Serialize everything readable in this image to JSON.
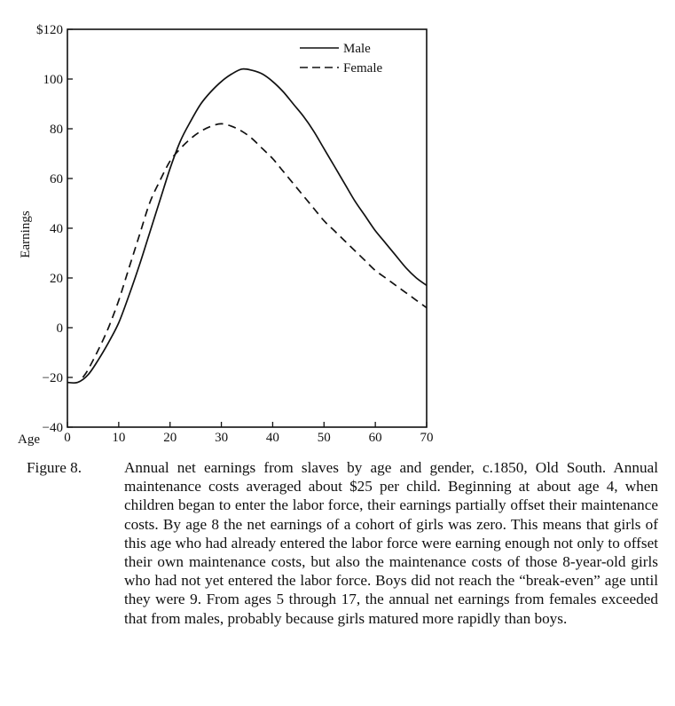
{
  "chart_data": {
    "type": "line",
    "title": "",
    "xlabel": "Age",
    "ylabel": "Earnings",
    "xlim": [
      0,
      70
    ],
    "ylim": [
      -40,
      120
    ],
    "x_ticks": [
      "0",
      "10",
      "20",
      "30",
      "40",
      "50",
      "60",
      "70"
    ],
    "x_tick_values": [
      0,
      10,
      20,
      30,
      40,
      50,
      60,
      70
    ],
    "y_ticks": [
      "$120",
      "100",
      "80",
      "60",
      "40",
      "20",
      "0",
      "−20",
      "−40"
    ],
    "y_tick_values": [
      120,
      100,
      80,
      60,
      40,
      20,
      0,
      -20,
      -40
    ],
    "grid": false,
    "legend_position": "top-right",
    "series": [
      {
        "name": "Male",
        "style": "solid",
        "color": "#111111",
        "x": [
          0,
          2,
          4,
          6,
          8,
          10,
          12,
          14,
          16,
          18,
          20,
          22,
          24,
          26,
          28,
          30,
          32,
          34,
          36,
          38,
          40,
          42,
          44,
          46,
          48,
          50,
          52,
          54,
          56,
          58,
          60,
          62,
          64,
          66,
          68,
          70
        ],
        "y": [
          -22,
          -22,
          -19,
          -13,
          -6,
          2,
          13,
          25,
          38,
          51,
          64,
          75,
          83,
          90,
          95,
          99,
          102,
          104,
          103.5,
          102,
          99,
          95,
          90,
          85,
          79,
          72,
          65,
          58,
          51,
          45,
          39,
          34,
          29,
          24,
          20,
          17
        ]
      },
      {
        "name": "Female",
        "style": "dashed",
        "color": "#111111",
        "x": [
          3,
          4,
          6,
          8,
          10,
          12,
          14,
          16,
          18,
          20,
          22,
          24,
          26,
          28,
          30,
          32,
          34,
          36,
          38,
          40,
          42,
          44,
          46,
          48,
          50,
          52,
          54,
          56,
          58,
          60,
          62,
          64,
          66,
          68,
          70
        ],
        "y": [
          -20,
          -17,
          -9,
          0,
          11,
          24,
          37,
          50,
          59,
          67,
          72,
          76,
          79,
          81,
          82,
          81,
          79,
          76,
          72,
          68,
          63,
          58,
          53,
          48,
          43,
          39,
          35,
          31,
          27,
          23,
          20,
          17,
          14,
          11,
          8
        ]
      }
    ]
  },
  "caption": {
    "label": "Figure 8.",
    "text": "Annual net earnings from slaves by age and gender, c.1850, Old South. Annual maintenance costs averaged about $25 per child. Beginning at about age 4, when children began to enter the labor force, their earnings partially offset their maintenance costs. By age 8 the net earnings of a cohort of girls was zero. This means that girls of this age who had already entered the labor force were earning enough not only to offset their own maintenance costs, but also the maintenance costs of those 8-year-old girls who had not yet entered the labor force. Boys did not reach the “break-even” age until they were 9. From ages 5 through 17, the annual net earnings from females exceeded that from males, probably because girls matured more rapidly than boys."
  }
}
